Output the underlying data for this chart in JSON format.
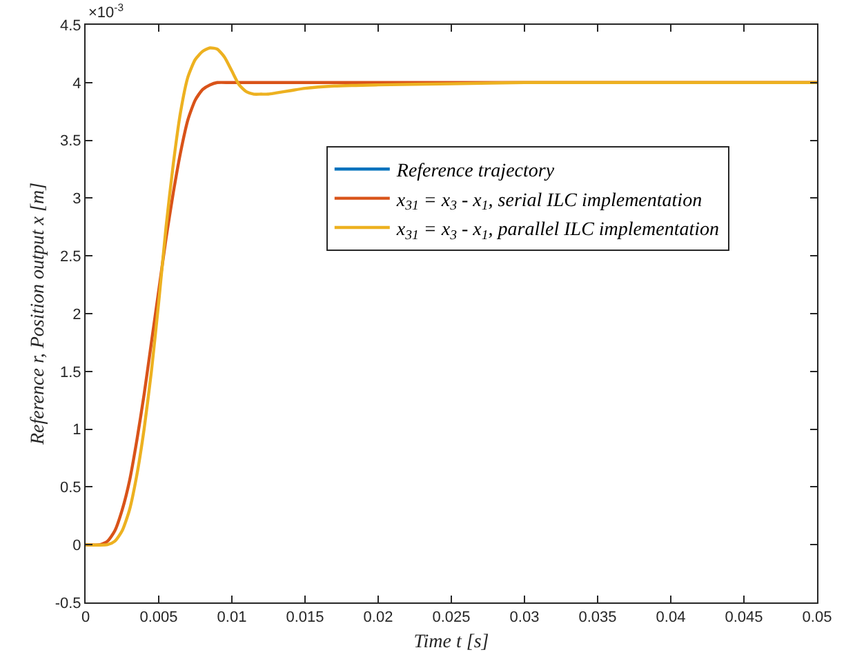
{
  "chart_data": {
    "type": "line",
    "xlabel": "Time t [s]",
    "ylabel": "Reference r, Position output x [m]",
    "annotations": [
      "×10$^{-3}$"
    ],
    "xlim": [
      0,
      0.05
    ],
    "xticks": [
      0,
      0.005,
      0.01,
      0.015,
      0.02,
      0.025,
      0.03,
      0.035,
      0.04,
      0.045,
      0.05
    ],
    "ylim": [
      -0.5,
      4.5
    ],
    "yticks": [
      -0.5,
      0,
      0.5,
      1,
      1.5,
      2,
      2.5,
      3,
      3.5,
      4,
      4.5
    ],
    "legend": "top right",
    "marker": "none",
    "line_style": "solid",
    "series": [
      {
        "name": "Reference trajectory",
        "color": "#0072bd",
        "values": [
          null
        ]
      },
      {
        "name": "x$_{31}$ = x$_{3}$ - x$_{1}$, serial ILC implementation",
        "color": "#d95319",
        "x": [
          0,
          0.001,
          0.0015,
          0.002,
          0.0025,
          0.003,
          0.0035,
          0.004,
          0.0045,
          0.005,
          0.0055,
          0.006,
          0.0065,
          0.007,
          0.0075,
          0.008,
          0.0085,
          0.009,
          0.01,
          0.05
        ],
        "values": [
          0,
          0,
          0.03,
          0.12,
          0.3,
          0.55,
          0.9,
          1.3,
          1.75,
          2.2,
          2.65,
          3.05,
          3.4,
          3.68,
          3.85,
          3.94,
          3.98,
          4.0,
          4,
          4
        ]
      },
      {
        "name": "x$_{31}$ = x$_{3}$ - x$_{1}$, parallel ILC implementation",
        "color": "#edb120",
        "x": [
          0,
          0.0015,
          0.002,
          0.0025,
          0.003,
          0.0035,
          0.004,
          0.0045,
          0.005,
          0.0055,
          0.006,
          0.0065,
          0.007,
          0.0075,
          0.008,
          0.0085,
          0.009,
          0.0095,
          0.01,
          0.0105,
          0.011,
          0.0115,
          0.012,
          0.0125,
          0.013,
          0.014,
          0.015,
          0.017,
          0.02,
          0.025,
          0.03,
          0.05
        ],
        "values": [
          0,
          0,
          0.03,
          0.12,
          0.3,
          0.6,
          1.0,
          1.5,
          2.1,
          2.75,
          3.3,
          3.75,
          4.05,
          4.2,
          4.27,
          4.3,
          4.29,
          4.22,
          4.1,
          3.98,
          3.92,
          3.9,
          3.9,
          3.9,
          3.91,
          3.93,
          3.95,
          3.97,
          3.98,
          3.99,
          4.0,
          4.0
        ]
      }
    ]
  }
}
